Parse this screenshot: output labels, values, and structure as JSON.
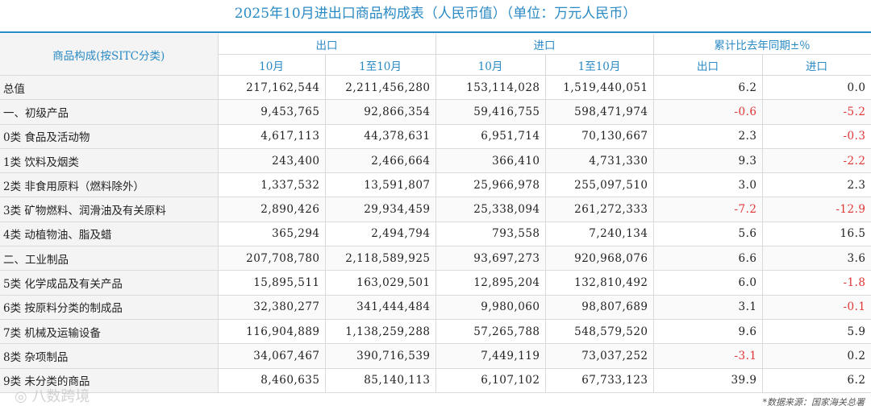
{
  "title": "2025年10月进出口商品构成表（人民币值）（单位：万元人民币）",
  "header": {
    "row_label": "商品构成(按SITC分类)",
    "export_group": "出口",
    "import_group": "进口",
    "yoy_group": "累计比去年同期±％",
    "month": "10月",
    "cumulative": "1至10月",
    "yoy_export": "出口",
    "yoy_import": "进口"
  },
  "rows": [
    {
      "name": "总值",
      "exp_m": "217,162,544",
      "exp_c": "2,211,456,280",
      "imp_m": "153,114,028",
      "imp_c": "1,519,440,051",
      "yoy_exp": "6.2",
      "yoy_imp": "0.0"
    },
    {
      "name": "一、初级产品",
      "exp_m": "9,453,765",
      "exp_c": "92,866,354",
      "imp_m": "59,416,755",
      "imp_c": "598,471,974",
      "yoy_exp": "-0.6",
      "yoy_imp": "-5.2"
    },
    {
      "name": "0类 食品及活动物",
      "exp_m": "4,617,113",
      "exp_c": "44,378,631",
      "imp_m": "6,951,714",
      "imp_c": "70,130,667",
      "yoy_exp": "2.3",
      "yoy_imp": "-0.3"
    },
    {
      "name": "1类 饮料及烟类",
      "exp_m": "243,400",
      "exp_c": "2,466,664",
      "imp_m": "366,410",
      "imp_c": "4,731,330",
      "yoy_exp": "9.3",
      "yoy_imp": "-2.2"
    },
    {
      "name": "2类 非食用原料（燃料除外）",
      "exp_m": "1,337,532",
      "exp_c": "13,591,807",
      "imp_m": "25,966,978",
      "imp_c": "255,097,510",
      "yoy_exp": "3.0",
      "yoy_imp": "2.3"
    },
    {
      "name": "3类 矿物燃料、润滑油及有关原料",
      "exp_m": "2,890,426",
      "exp_c": "29,934,459",
      "imp_m": "25,338,094",
      "imp_c": "261,272,333",
      "yoy_exp": "-7.2",
      "yoy_imp": "-12.9"
    },
    {
      "name": "4类 动植物油、脂及蜡",
      "exp_m": "365,294",
      "exp_c": "2,494,794",
      "imp_m": "793,558",
      "imp_c": "7,240,134",
      "yoy_exp": "5.6",
      "yoy_imp": "16.5"
    },
    {
      "name": "二、工业制品",
      "exp_m": "207,708,780",
      "exp_c": "2,118,589,925",
      "imp_m": "93,697,273",
      "imp_c": "920,968,076",
      "yoy_exp": "6.6",
      "yoy_imp": "3.6"
    },
    {
      "name": "5类 化学成品及有关产品",
      "exp_m": "15,895,511",
      "exp_c": "163,029,501",
      "imp_m": "12,895,204",
      "imp_c": "132,810,492",
      "yoy_exp": "6.0",
      "yoy_imp": "-1.8"
    },
    {
      "name": "6类 按原料分类的制成品",
      "exp_m": "32,380,277",
      "exp_c": "341,444,484",
      "imp_m": "9,980,060",
      "imp_c": "98,807,689",
      "yoy_exp": "3.1",
      "yoy_imp": "-0.1"
    },
    {
      "name": "7类 机械及运输设备",
      "exp_m": "116,904,889",
      "exp_c": "1,138,259,288",
      "imp_m": "57,265,788",
      "imp_c": "548,579,520",
      "yoy_exp": "9.6",
      "yoy_imp": "5.9"
    },
    {
      "name": "8类 杂项制品",
      "exp_m": "34,067,467",
      "exp_c": "390,716,539",
      "imp_m": "7,449,119",
      "imp_c": "73,037,252",
      "yoy_exp": "-3.1",
      "yoy_imp": "0.2"
    },
    {
      "name": "9类 未分类的商品",
      "exp_m": "8,460,635",
      "exp_c": "85,140,113",
      "imp_m": "6,107,102",
      "imp_c": "67,733,123",
      "yoy_exp": "39.9",
      "yoy_imp": "6.2"
    }
  ],
  "source": "*数据来源：国家海关总署",
  "watermark": "八数跨境",
  "colors": {
    "accent": "#2a8ac4",
    "negative": "#e03535"
  }
}
